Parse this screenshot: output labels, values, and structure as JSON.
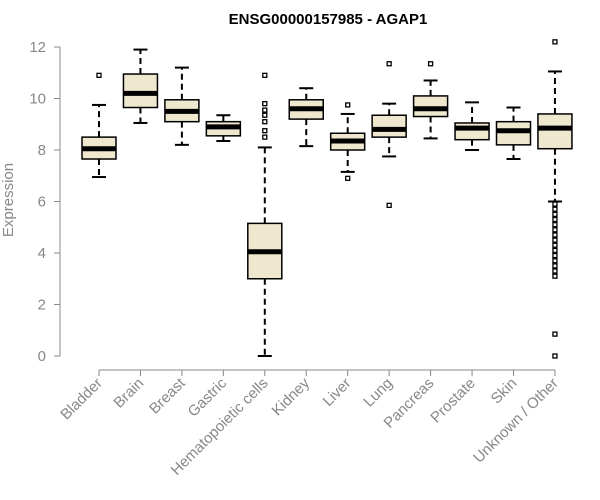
{
  "chart_data": {
    "type": "boxplot",
    "title": "ENSG00000157985 - AGAP1",
    "ylabel": "Expression",
    "xlabel": "",
    "ylim": [
      0,
      12
    ],
    "yticks": [
      0,
      2,
      4,
      6,
      8,
      10,
      12
    ],
    "grid": false,
    "categories": [
      "Bladder",
      "Brain",
      "Breast",
      "Gastric",
      "Hematopoietic cells",
      "Kidney",
      "Liver",
      "Lung",
      "Pancreas",
      "Prostate",
      "Skin",
      "Unknown / Other"
    ],
    "boxes": [
      {
        "whisker_low": 6.95,
        "q1": 7.65,
        "median": 8.05,
        "q3": 8.5,
        "whisker_high": 9.75,
        "outliers": [
          10.9
        ]
      },
      {
        "whisker_low": 9.05,
        "q1": 9.65,
        "median": 10.2,
        "q3": 10.95,
        "whisker_high": 11.9,
        "outliers": []
      },
      {
        "whisker_low": 8.2,
        "q1": 9.1,
        "median": 9.5,
        "q3": 9.95,
        "whisker_high": 11.2,
        "outliers": []
      },
      {
        "whisker_low": 8.35,
        "q1": 8.55,
        "median": 8.9,
        "q3": 9.1,
        "whisker_high": 9.35,
        "outliers": []
      },
      {
        "whisker_low": 0.0,
        "q1": 3.0,
        "median": 4.05,
        "q3": 5.15,
        "whisker_high": 8.1,
        "outliers": [
          8.5,
          8.75,
          9.1,
          9.35,
          9.55,
          9.8,
          10.9
        ]
      },
      {
        "whisker_low": 8.15,
        "q1": 9.2,
        "median": 9.6,
        "q3": 9.95,
        "whisker_high": 10.4,
        "outliers": []
      },
      {
        "whisker_low": 7.15,
        "q1": 8.0,
        "median": 8.35,
        "q3": 8.65,
        "whisker_high": 9.4,
        "outliers": [
          6.9,
          9.75
        ]
      },
      {
        "whisker_low": 7.75,
        "q1": 8.5,
        "median": 8.8,
        "q3": 9.35,
        "whisker_high": 9.8,
        "outliers": [
          5.85,
          11.35
        ]
      },
      {
        "whisker_low": 8.45,
        "q1": 9.3,
        "median": 9.6,
        "q3": 10.1,
        "whisker_high": 10.7,
        "outliers": [
          11.35
        ]
      },
      {
        "whisker_low": 8.0,
        "q1": 8.4,
        "median": 8.85,
        "q3": 9.05,
        "whisker_high": 9.85,
        "outliers": []
      },
      {
        "whisker_low": 7.65,
        "q1": 8.2,
        "median": 8.75,
        "q3": 9.1,
        "whisker_high": 9.65,
        "outliers": []
      },
      {
        "whisker_low": 6.0,
        "q1": 8.05,
        "median": 8.85,
        "q3": 9.4,
        "whisker_high": 11.05,
        "outliers": [
          0.0,
          0.85,
          3.1,
          3.3,
          3.5,
          3.7,
          3.9,
          4.1,
          4.3,
          4.5,
          4.7,
          4.9,
          5.1,
          5.3,
          5.5,
          5.7,
          5.9,
          12.2
        ]
      }
    ],
    "colors": {
      "box_fill": "#efe8cf",
      "stroke": "#000000",
      "axis": "#888888"
    }
  }
}
